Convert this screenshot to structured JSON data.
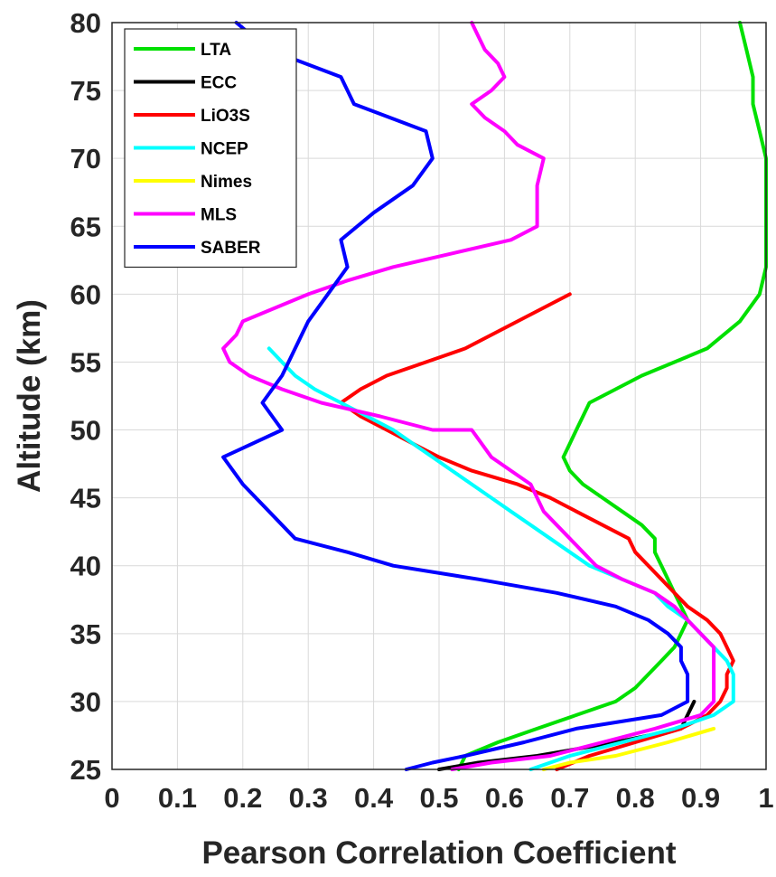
{
  "chart_data": {
    "type": "line",
    "title": "",
    "xlabel": "Pearson Correlation Coefficient",
    "ylabel": "Altitude (km)",
    "xlim": [
      0,
      1
    ],
    "ylim": [
      25,
      80
    ],
    "xticks": [
      "0",
      "0.1",
      "0.2",
      "0.3",
      "0.4",
      "0.5",
      "0.6",
      "0.7",
      "0.8",
      "0.9",
      "1"
    ],
    "yticks": [
      "25",
      "30",
      "35",
      "40",
      "45",
      "50",
      "55",
      "60",
      "65",
      "70",
      "75",
      "80"
    ],
    "grid": true,
    "legend_position": "top-left",
    "series": [
      {
        "name": "LTA",
        "color": "#00e000",
        "points": [
          [
            0.96,
            80
          ],
          [
            0.97,
            78
          ],
          [
            0.98,
            76
          ],
          [
            0.98,
            74
          ],
          [
            0.99,
            72
          ],
          [
            1.0,
            70
          ],
          [
            1.0,
            68
          ],
          [
            1.0,
            66
          ],
          [
            1.0,
            64
          ],
          [
            1.0,
            62
          ],
          [
            0.99,
            60
          ],
          [
            0.96,
            58
          ],
          [
            0.91,
            56
          ],
          [
            0.86,
            55
          ],
          [
            0.81,
            54
          ],
          [
            0.77,
            53
          ],
          [
            0.73,
            52
          ],
          [
            0.72,
            51
          ],
          [
            0.71,
            50
          ],
          [
            0.7,
            49
          ],
          [
            0.69,
            48
          ],
          [
            0.7,
            47
          ],
          [
            0.72,
            46
          ],
          [
            0.75,
            45
          ],
          [
            0.78,
            44
          ],
          [
            0.81,
            43
          ],
          [
            0.83,
            42
          ],
          [
            0.83,
            41
          ],
          [
            0.84,
            40
          ],
          [
            0.85,
            39
          ],
          [
            0.86,
            38
          ],
          [
            0.87,
            37
          ],
          [
            0.88,
            36
          ],
          [
            0.87,
            35
          ],
          [
            0.86,
            34
          ],
          [
            0.84,
            33
          ],
          [
            0.82,
            32
          ],
          [
            0.8,
            31
          ],
          [
            0.77,
            30
          ],
          [
            0.71,
            29
          ],
          [
            0.65,
            28
          ],
          [
            0.59,
            27
          ],
          [
            0.54,
            26
          ],
          [
            0.53,
            25
          ]
        ]
      },
      {
        "name": "ECC",
        "color": "#000000",
        "points": [
          [
            0.89,
            30
          ],
          [
            0.88,
            29
          ],
          [
            0.87,
            28
          ],
          [
            0.77,
            27
          ],
          [
            0.65,
            26
          ],
          [
            0.56,
            25.5
          ],
          [
            0.5,
            25
          ]
        ]
      },
      {
        "name": "LiO3S",
        "color": "#ff0000",
        "points": [
          [
            0.7,
            60
          ],
          [
            0.62,
            58
          ],
          [
            0.54,
            56
          ],
          [
            0.48,
            55
          ],
          [
            0.42,
            54
          ],
          [
            0.38,
            53
          ],
          [
            0.35,
            52
          ],
          [
            0.38,
            51
          ],
          [
            0.42,
            50
          ],
          [
            0.46,
            49
          ],
          [
            0.5,
            48
          ],
          [
            0.55,
            47
          ],
          [
            0.62,
            46
          ],
          [
            0.67,
            45
          ],
          [
            0.71,
            44
          ],
          [
            0.75,
            43
          ],
          [
            0.79,
            42
          ],
          [
            0.8,
            41
          ],
          [
            0.82,
            40
          ],
          [
            0.84,
            39
          ],
          [
            0.86,
            38
          ],
          [
            0.88,
            37
          ],
          [
            0.91,
            36
          ],
          [
            0.93,
            35
          ],
          [
            0.94,
            34
          ],
          [
            0.95,
            33
          ],
          [
            0.94,
            32
          ],
          [
            0.94,
            31
          ],
          [
            0.93,
            30
          ],
          [
            0.91,
            29
          ],
          [
            0.87,
            28
          ],
          [
            0.8,
            27
          ],
          [
            0.73,
            26
          ],
          [
            0.68,
            25
          ]
        ]
      },
      {
        "name": "NCEP",
        "color": "#00ffff",
        "points": [
          [
            0.24,
            56
          ],
          [
            0.26,
            55
          ],
          [
            0.28,
            54
          ],
          [
            0.31,
            53
          ],
          [
            0.35,
            52
          ],
          [
            0.39,
            51
          ],
          [
            0.43,
            50
          ],
          [
            0.46,
            49
          ],
          [
            0.49,
            48
          ],
          [
            0.52,
            47
          ],
          [
            0.55,
            46
          ],
          [
            0.58,
            45
          ],
          [
            0.61,
            44
          ],
          [
            0.64,
            43
          ],
          [
            0.67,
            42
          ],
          [
            0.7,
            41
          ],
          [
            0.73,
            40
          ],
          [
            0.78,
            39
          ],
          [
            0.83,
            38
          ],
          [
            0.85,
            37
          ],
          [
            0.88,
            36
          ],
          [
            0.9,
            35
          ],
          [
            0.92,
            34
          ],
          [
            0.94,
            33
          ],
          [
            0.95,
            32
          ],
          [
            0.95,
            31
          ],
          [
            0.95,
            30
          ],
          [
            0.92,
            29
          ],
          [
            0.86,
            28
          ],
          [
            0.78,
            27
          ],
          [
            0.7,
            26
          ],
          [
            0.64,
            25
          ]
        ]
      },
      {
        "name": "Nimes",
        "color": "#ffff00",
        "points": [
          [
            0.92,
            28
          ],
          [
            0.85,
            27
          ],
          [
            0.77,
            26
          ],
          [
            0.7,
            25.5
          ],
          [
            0.66,
            25
          ]
        ]
      },
      {
        "name": "MLS",
        "color": "#ff00ff",
        "points": [
          [
            0.55,
            80
          ],
          [
            0.56,
            79
          ],
          [
            0.57,
            78
          ],
          [
            0.59,
            77
          ],
          [
            0.6,
            76
          ],
          [
            0.58,
            75
          ],
          [
            0.55,
            74
          ],
          [
            0.57,
            73
          ],
          [
            0.6,
            72
          ],
          [
            0.62,
            71
          ],
          [
            0.66,
            70
          ],
          [
            0.65,
            68
          ],
          [
            0.65,
            66
          ],
          [
            0.65,
            65
          ],
          [
            0.61,
            64
          ],
          [
            0.52,
            63
          ],
          [
            0.43,
            62
          ],
          [
            0.36,
            61
          ],
          [
            0.3,
            60
          ],
          [
            0.25,
            59
          ],
          [
            0.2,
            58
          ],
          [
            0.19,
            57
          ],
          [
            0.17,
            56
          ],
          [
            0.18,
            55
          ],
          [
            0.21,
            54
          ],
          [
            0.26,
            53
          ],
          [
            0.32,
            52
          ],
          [
            0.41,
            51
          ],
          [
            0.49,
            50
          ],
          [
            0.55,
            50
          ],
          [
            0.58,
            48
          ],
          [
            0.61,
            47
          ],
          [
            0.64,
            46
          ],
          [
            0.65,
            45
          ],
          [
            0.66,
            44
          ],
          [
            0.68,
            43
          ],
          [
            0.7,
            42
          ],
          [
            0.72,
            41
          ],
          [
            0.74,
            40
          ],
          [
            0.78,
            39
          ],
          [
            0.83,
            38
          ],
          [
            0.86,
            37
          ],
          [
            0.88,
            36
          ],
          [
            0.9,
            35
          ],
          [
            0.92,
            34
          ],
          [
            0.92,
            33
          ],
          [
            0.92,
            32
          ],
          [
            0.92,
            31
          ],
          [
            0.92,
            30
          ],
          [
            0.9,
            29
          ],
          [
            0.83,
            28
          ],
          [
            0.75,
            27
          ],
          [
            0.67,
            26
          ],
          [
            0.58,
            25.5
          ],
          [
            0.52,
            25
          ]
        ]
      },
      {
        "name": "SABER",
        "color": "#0000ff",
        "points": [
          [
            0.19,
            80
          ],
          [
            0.24,
            78
          ],
          [
            0.35,
            76
          ],
          [
            0.37,
            74
          ],
          [
            0.48,
            72
          ],
          [
            0.49,
            70
          ],
          [
            0.46,
            68
          ],
          [
            0.4,
            66
          ],
          [
            0.35,
            64
          ],
          [
            0.36,
            62
          ],
          [
            0.33,
            60
          ],
          [
            0.3,
            58
          ],
          [
            0.28,
            56
          ],
          [
            0.26,
            54
          ],
          [
            0.23,
            52
          ],
          [
            0.26,
            50
          ],
          [
            0.17,
            48
          ],
          [
            0.2,
            46
          ],
          [
            0.24,
            44
          ],
          [
            0.28,
            42
          ],
          [
            0.36,
            41
          ],
          [
            0.43,
            40
          ],
          [
            0.56,
            39
          ],
          [
            0.68,
            38
          ],
          [
            0.77,
            37
          ],
          [
            0.82,
            36
          ],
          [
            0.85,
            35
          ],
          [
            0.87,
            34
          ],
          [
            0.87,
            33
          ],
          [
            0.88,
            32
          ],
          [
            0.88,
            31
          ],
          [
            0.88,
            30
          ],
          [
            0.84,
            29
          ],
          [
            0.71,
            28
          ],
          [
            0.63,
            27
          ],
          [
            0.54,
            26
          ],
          [
            0.49,
            25.5
          ],
          [
            0.45,
            25
          ]
        ]
      }
    ]
  }
}
